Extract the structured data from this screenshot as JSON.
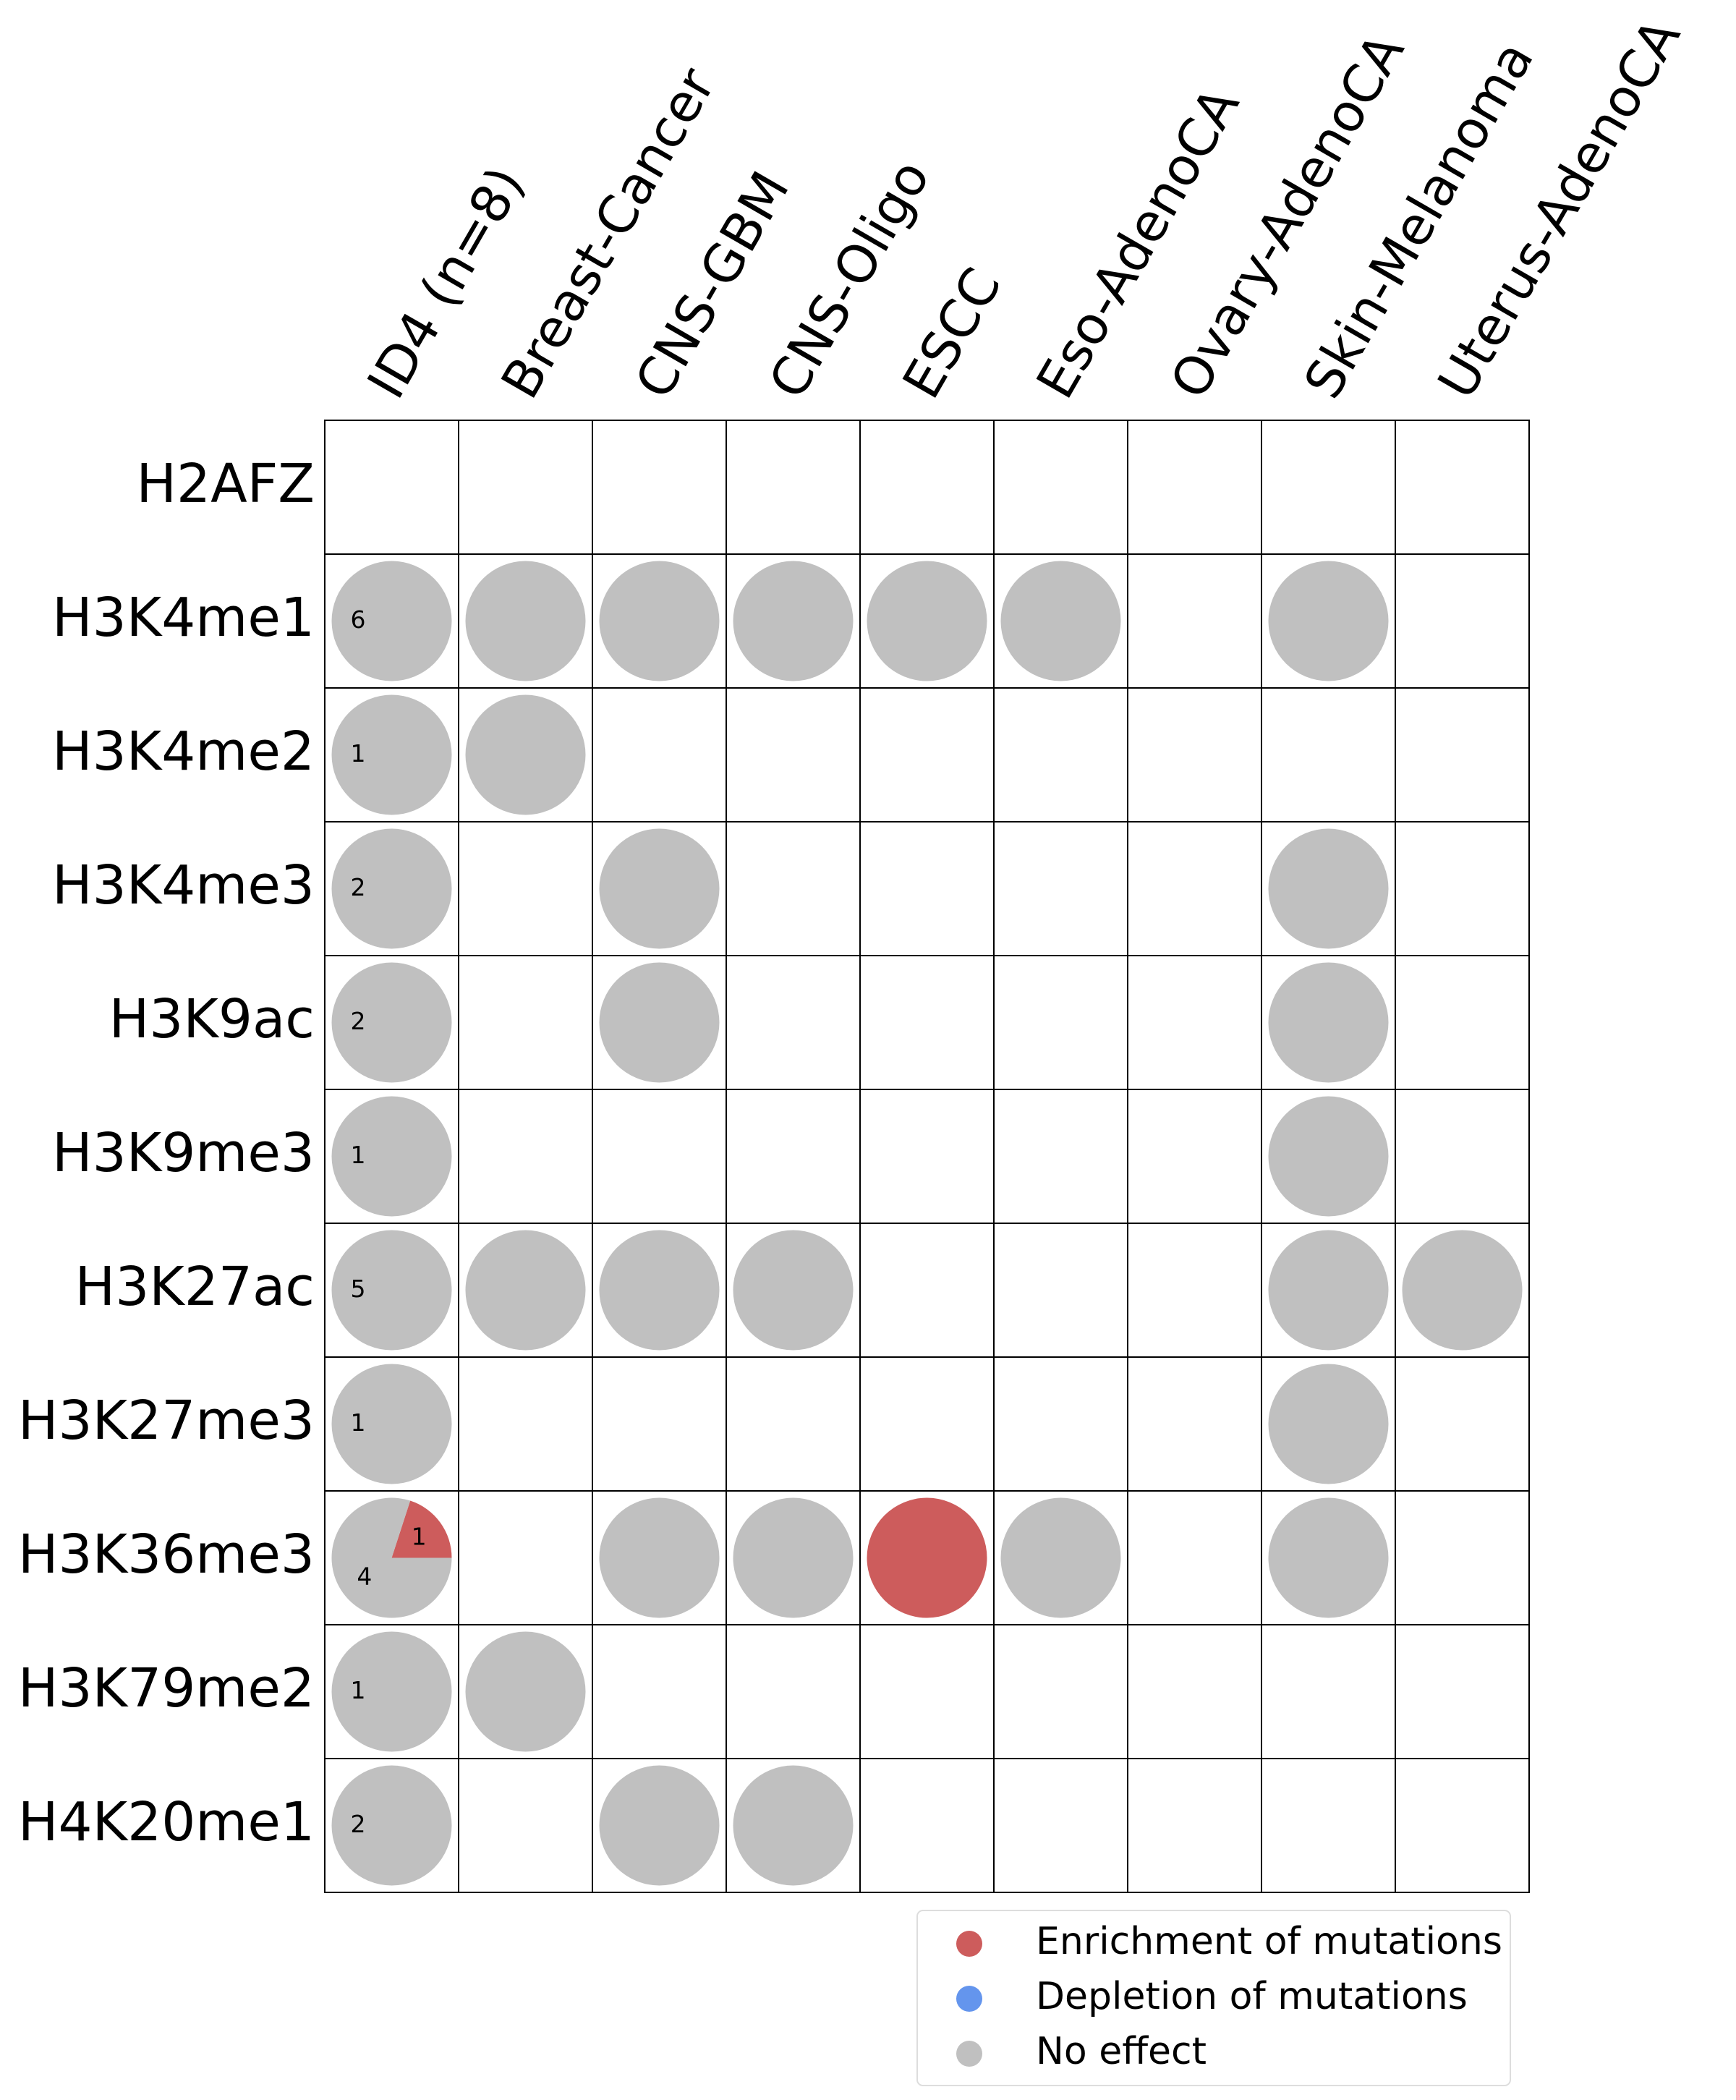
{
  "chart_data": {
    "type": "circle-matrix",
    "columns": [
      "ID4 (n=8)",
      "Breast-Cancer",
      "CNS-GBM",
      "CNS-Oligo",
      "ESCC",
      "Eso-AdenoCA",
      "Ovary-AdenoCA",
      "Skin-Melanoma",
      "Uterus-AdenoCA"
    ],
    "rows": [
      "H2AFZ",
      "H3K4me1",
      "H3K4me2",
      "H3K4me3",
      "H3K9ac",
      "H3K9me3",
      "H3K27ac",
      "H3K27me3",
      "H3K36me3",
      "H3K79me2",
      "H4K20me1"
    ],
    "legend": [
      {
        "name": "Enrichment of mutations",
        "color": "#cd5c5c"
      },
      {
        "name": "Depletion of mutations",
        "color": "#6495ed"
      },
      {
        "name": "No effect",
        "color": "#c0c0c0"
      }
    ],
    "id4_counts": [
      [
        null,
        null,
        null
      ],
      [
        null,
        null,
        6
      ],
      [
        null,
        null,
        1
      ],
      [
        null,
        null,
        2
      ],
      [
        null,
        null,
        2
      ],
      [
        null,
        null,
        1
      ],
      [
        null,
        null,
        5
      ],
      [
        null,
        null,
        1
      ],
      [
        1,
        null,
        4
      ],
      [
        null,
        null,
        1
      ],
      [
        null,
        null,
        2
      ]
    ],
    "cells": [
      [
        null,
        null,
        null,
        null,
        null,
        null,
        null,
        null
      ],
      [
        2,
        2,
        2,
        2,
        2,
        null,
        2,
        null
      ],
      [
        2,
        null,
        null,
        null,
        null,
        null,
        null,
        null
      ],
      [
        null,
        2,
        null,
        null,
        null,
        null,
        2,
        null
      ],
      [
        null,
        2,
        null,
        null,
        null,
        null,
        2,
        null
      ],
      [
        null,
        null,
        null,
        null,
        null,
        null,
        2,
        null
      ],
      [
        2,
        2,
        2,
        null,
        null,
        null,
        2,
        2
      ],
      [
        null,
        null,
        null,
        null,
        null,
        null,
        2,
        null
      ],
      [
        null,
        2,
        2,
        0,
        2,
        null,
        2,
        null
      ],
      [
        2,
        null,
        null,
        null,
        null,
        null,
        null,
        null
      ],
      [
        null,
        2,
        2,
        null,
        null,
        null,
        null,
        null
      ]
    ]
  }
}
